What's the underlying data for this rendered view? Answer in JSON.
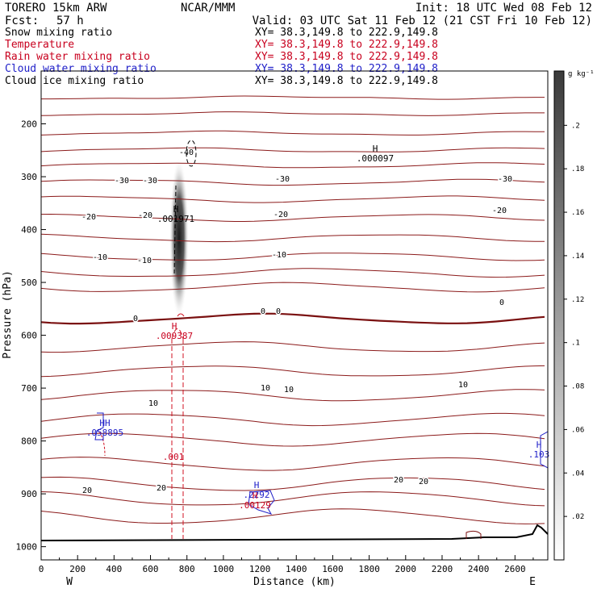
{
  "header": {
    "model": "TORERO  15km ARW",
    "center": "NCAR/MMM",
    "init": "Init: 18 UTC Wed 08 Feb 12",
    "fcst_label": "Fcst:",
    "fcst_value": "57 h",
    "valid": "Valid: 03 UTC Sat 11 Feb 12 (21 CST Fri 10 Feb 12)"
  },
  "fields": [
    {
      "name": "Snow mixing ratio",
      "xy": "XY=  38.3,149.8 to 222.9,149.8",
      "color": "#000000"
    },
    {
      "name": "Temperature",
      "xy": "XY=  38.3,149.8 to 222.9,149.8",
      "color": "#c8001e"
    },
    {
      "name": "Rain water mixing ratio",
      "xy": "XY=  38.3,149.8 to 222.9,149.8",
      "color": "#c8001e"
    },
    {
      "name": "Cloud water mixing ratio",
      "xy": "XY=  38.3,149.8 to 222.9,149.8",
      "color": "#1e1ec8"
    },
    {
      "name": "Cloud ice mixing ratio",
      "xy": "XY=  38.3,149.8 to 222.9,149.8",
      "color": "#000000"
    }
  ],
  "chart_data": {
    "type": "cross-section",
    "xlabel": "Distance (km)",
    "ylabel": "Pressure (hPa)",
    "x_ticks": [
      0,
      200,
      400,
      600,
      800,
      1000,
      1200,
      1400,
      1600,
      1800,
      2000,
      2200,
      2400,
      2600
    ],
    "y_ticks": [
      200,
      300,
      400,
      500,
      600,
      700,
      800,
      900,
      1000
    ],
    "xlim": [
      0,
      2780
    ],
    "ylim": [
      1025,
      100
    ],
    "x_end_labels": {
      "left": "W",
      "right": "E"
    },
    "colorbar": {
      "unit": "g kg⁻¹",
      "ticks": [
        ".02",
        ".04",
        ".06",
        ".08",
        ".1",
        ".12",
        ".14",
        ".16",
        ".18",
        ".2"
      ]
    },
    "temperature_labels": [
      "-40",
      "-30",
      "-30",
      "-30",
      "-30",
      "-20",
      "-20",
      "-20",
      "-20",
      "-10",
      "-10",
      "-10",
      "0",
      "0",
      "0",
      "0",
      "10",
      "10",
      "10",
      "10",
      "20",
      "20",
      "20",
      "20"
    ],
    "extrema": [
      {
        "symbol": "H",
        "value": ".000097",
        "field": "Cloud ice mixing ratio"
      },
      {
        "symbol": "H",
        "value": ".001971",
        "field": "Snow mixing ratio"
      },
      {
        "symbol": "H",
        "value": ".009387",
        "field": "Rain water mixing ratio"
      },
      {
        "symbol": "HH",
        "value": ".058895",
        "field": "Cloud water mixing ratio"
      },
      {
        "symbol": "",
        "value": ".001",
        "field": "Rain water mixing ratio"
      },
      {
        "symbol": "H",
        "value": ".2292",
        "field": "Cloud water mixing ratio"
      },
      {
        "symbol": "H",
        "value": ".00129",
        "field": "Rain water mixing ratio"
      },
      {
        "symbol": "H",
        "value": ".103",
        "field": "Cloud water mixing ratio"
      }
    ]
  }
}
